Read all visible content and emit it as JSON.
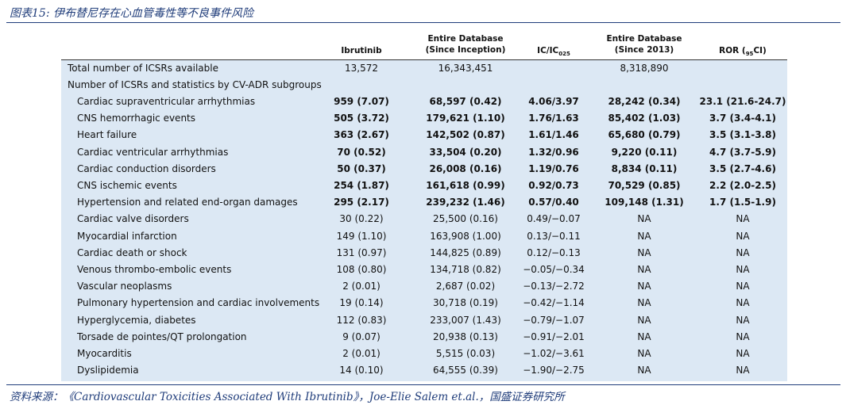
{
  "figure_title": "图表15:  伊布替尼存在心血管毒性等不良事件风险",
  "headers": {
    "ibrutinib": "Ibrutinib",
    "db_inception_line1": "Entire Database",
    "db_inception_line2": "(Since Inception)",
    "ic_main": "IC/IC",
    "ic_sub": "025",
    "db_2013_line1": "Entire Database",
    "db_2013_line2": "(Since 2013)",
    "ror_main": "ROR (",
    "ror_sub": "95",
    "ror_end": "CI)"
  },
  "total_row": {
    "label": "Total number of ICSRs available",
    "ibrutinib": "13,572",
    "db_inception": "16,343,451",
    "ic": "",
    "db_2013": "8,318,890",
    "ror": ""
  },
  "subgroup_heading": "Number of ICSRs and statistics by CV-ADR subgroups",
  "rows": [
    {
      "label": "Cardiac supraventricular arrhythmias",
      "ibrutinib": "959 (7.07)",
      "db_inception": "68,597 (0.42)",
      "ic": "4.06/3.97",
      "db_2013": "28,242 (0.34)",
      "ror": "23.1 (21.6-24.7)",
      "bold": true
    },
    {
      "label": "CNS hemorrhagic events",
      "ibrutinib": "505 (3.72)",
      "db_inception": "179,621 (1.10)",
      "ic": "1.76/1.63",
      "db_2013": "85,402 (1.03)",
      "ror": "3.7 (3.4-4.1)",
      "bold": true
    },
    {
      "label": "Heart failure",
      "ibrutinib": "363 (2.67)",
      "db_inception": "142,502 (0.87)",
      "ic": "1.61/1.46",
      "db_2013": "65,680 (0.79)",
      "ror": "3.5 (3.1-3.8)",
      "bold": true
    },
    {
      "label": "Cardiac ventricular arrhythmias",
      "ibrutinib": "70 (0.52)",
      "db_inception": "33,504 (0.20)",
      "ic": "1.32/0.96",
      "db_2013": "9,220 (0.11)",
      "ror": "4.7 (3.7-5.9)",
      "bold": true
    },
    {
      "label": "Cardiac conduction disorders",
      "ibrutinib": "50 (0.37)",
      "db_inception": "26,008 (0.16)",
      "ic": "1.19/0.76",
      "db_2013": "8,834 (0.11)",
      "ror": "3.5 (2.7-4.6)",
      "bold": true
    },
    {
      "label": "CNS ischemic events",
      "ibrutinib": "254 (1.87)",
      "db_inception": "161,618 (0.99)",
      "ic": "0.92/0.73",
      "db_2013": "70,529 (0.85)",
      "ror": "2.2 (2.0-2.5)",
      "bold": true
    },
    {
      "label": "Hypertension and related end-organ damages",
      "ibrutinib": "295 (2.17)",
      "db_inception": "239,232 (1.46)",
      "ic": "0.57/0.40",
      "db_2013": "109,148 (1.31)",
      "ror": "1.7 (1.5-1.9)",
      "bold": true
    },
    {
      "label": "Cardiac valve disorders",
      "ibrutinib": "30 (0.22)",
      "db_inception": "25,500 (0.16)",
      "ic": "0.49/−0.07",
      "db_2013": "NA",
      "ror": "NA",
      "bold": false
    },
    {
      "label": "Myocardial infarction",
      "ibrutinib": "149 (1.10)",
      "db_inception": "163,908 (1.00)",
      "ic": "0.13/−0.11",
      "db_2013": "NA",
      "ror": "NA",
      "bold": false
    },
    {
      "label": "Cardiac death or shock",
      "ibrutinib": "131 (0.97)",
      "db_inception": "144,825 (0.89)",
      "ic": "0.12/−0.13",
      "db_2013": "NA",
      "ror": "NA",
      "bold": false
    },
    {
      "label": "Venous thrombo-embolic events",
      "ibrutinib": "108 (0.80)",
      "db_inception": "134,718 (0.82)",
      "ic": "−0.05/−0.34",
      "db_2013": "NA",
      "ror": "NA",
      "bold": false
    },
    {
      "label": "Vascular neoplasms",
      "ibrutinib": "2 (0.01)",
      "db_inception": "2,687 (0.02)",
      "ic": "−0.13/−2.72",
      "db_2013": "NA",
      "ror": "NA",
      "bold": false
    },
    {
      "label": "Pulmonary hypertension and cardiac involvements",
      "ibrutinib": "19 (0.14)",
      "db_inception": "30,718 (0.19)",
      "ic": "−0.42/−1.14",
      "db_2013": "NA",
      "ror": "NA",
      "bold": false
    },
    {
      "label": "Hyperglycemia, diabetes",
      "ibrutinib": "112 (0.83)",
      "db_inception": "233,007 (1.43)",
      "ic": "−0.79/−1.07",
      "db_2013": "NA",
      "ror": "NA",
      "bold": false
    },
    {
      "label": "Torsade de pointes/QT prolongation",
      "ibrutinib": "9 (0.07)",
      "db_inception": "20,938 (0.13)",
      "ic": "−0.91/−2.01",
      "db_2013": "NA",
      "ror": "NA",
      "bold": false
    },
    {
      "label": "Myocarditis",
      "ibrutinib": "2 (0.01)",
      "db_inception": "5,515 (0.03)",
      "ic": "−1.02/−3.61",
      "db_2013": "NA",
      "ror": "NA",
      "bold": false
    },
    {
      "label": "Dyslipidemia",
      "ibrutinib": "14 (0.10)",
      "db_inception": "64,555 (0.39)",
      "ic": "−1.90/−2.75",
      "db_2013": "NA",
      "ror": "NA",
      "bold": false
    }
  ],
  "source": "资料来源：《Cardiovascular Toxicities Associated With Ibrutinib》，Joe-Elie Salem et.al.，国盛证券研究所"
}
